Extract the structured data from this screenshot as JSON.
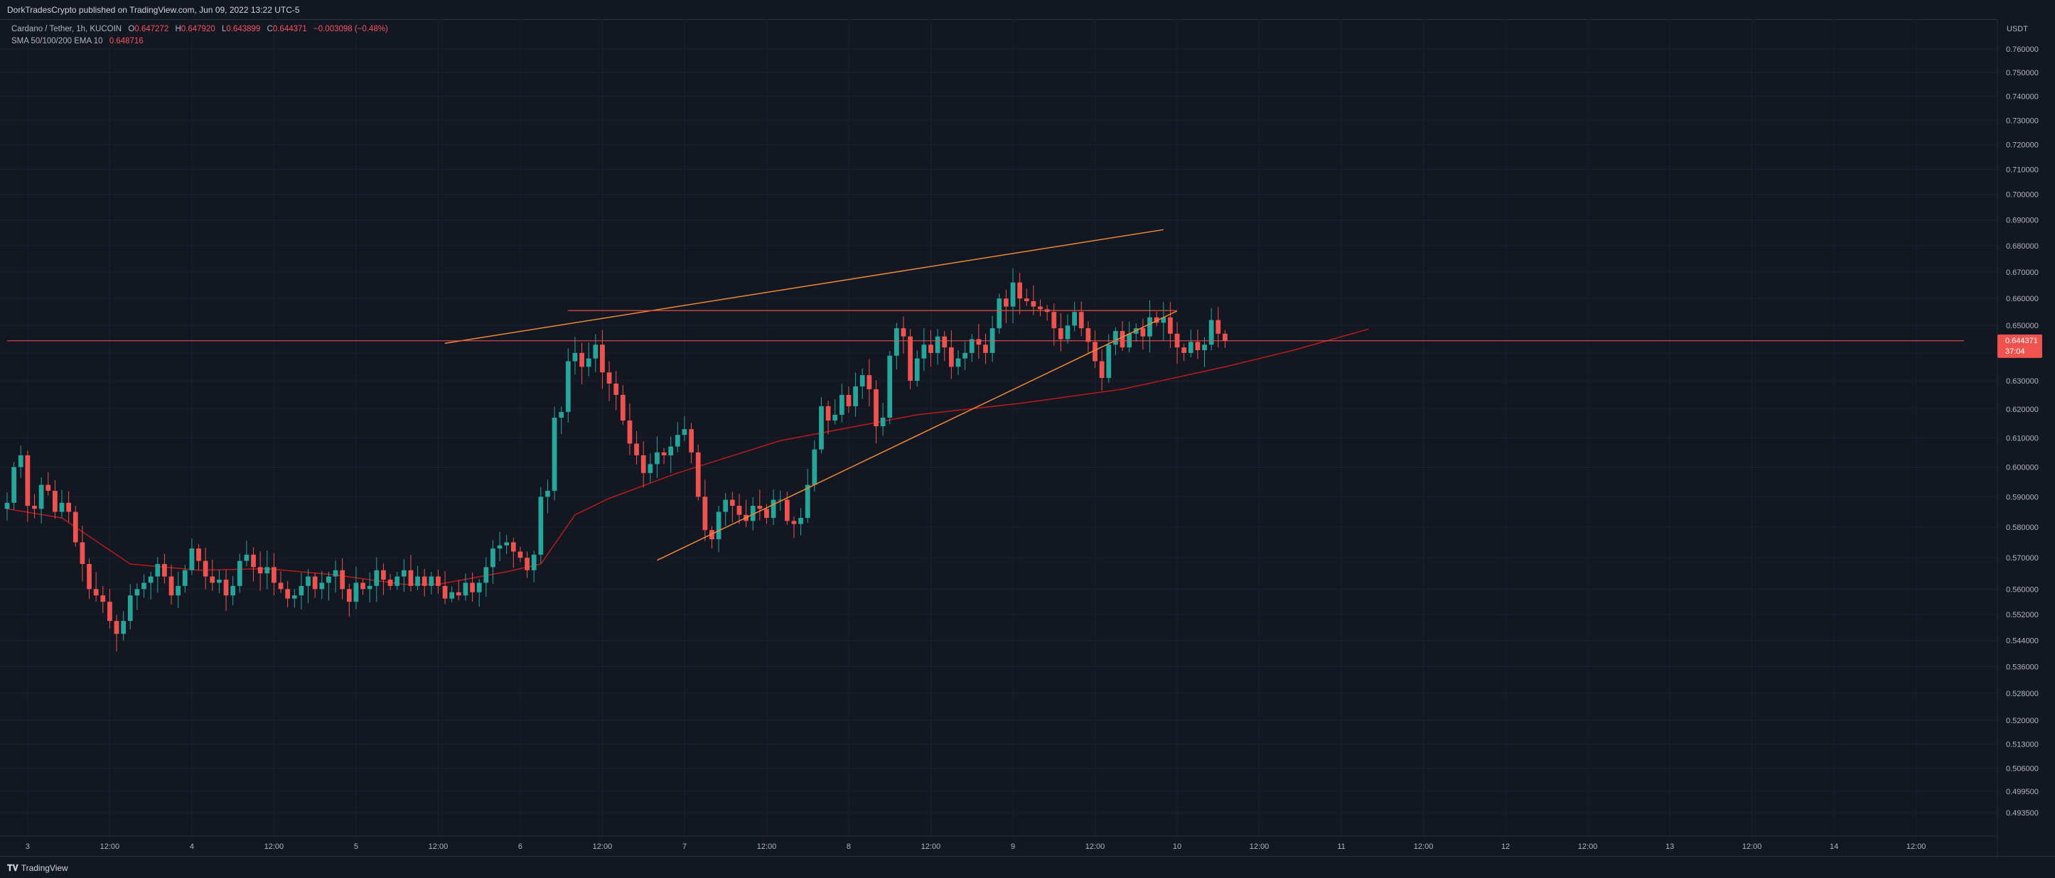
{
  "header": {
    "published": "DorkTradesCrypto published on TradingView.com, Jun 09, 2022 13:22 UTC-5"
  },
  "legend": {
    "symbol": "Cardano / Tether, 1h, KUCOIN",
    "open_label": "O",
    "open": "0.647272",
    "high_label": "H",
    "high": "0.647920",
    "low_label": "L",
    "low": "0.643899",
    "close_label": "C",
    "close": "0.644371",
    "change": "−0.003098 (−0.48%)",
    "indicator": "SMA 50/100/200 EMA 10",
    "indicator_value": "0.648716"
  },
  "price_axis": {
    "currency": "USDT",
    "last_price": "0.644371",
    "countdown": "37:04"
  },
  "footer": {
    "brand": "TradingView"
  },
  "colors": {
    "background": "#131722",
    "grid": "#1c2030",
    "up": "#26a69a",
    "down": "#ef5350",
    "ema": "#b71c1c",
    "trendline": "#ef8a34",
    "resistance": "#e0513f",
    "price_line": "#ef5350"
  },
  "chart_data": {
    "type": "candlestick",
    "title": "Cardano / Tether, 1h, KUCOIN",
    "scale": "log",
    "y_ticks": [
      "0.760000",
      "0.750000",
      "0.740000",
      "0.730000",
      "0.720000",
      "0.710000",
      "0.700000",
      "0.690000",
      "0.680000",
      "0.670000",
      "0.660000",
      "0.650000",
      "0.640000",
      "0.630000",
      "0.620000",
      "0.610000",
      "0.600000",
      "0.590000",
      "0.580000",
      "0.570000",
      "0.560000",
      "0.552000",
      "0.544000",
      "0.536000",
      "0.528000",
      "0.520000",
      "0.513000",
      "0.506000",
      "0.499500",
      "0.493500"
    ],
    "y_values": [
      0.76,
      0.75,
      0.74,
      0.73,
      0.72,
      0.71,
      0.7,
      0.69,
      0.68,
      0.67,
      0.66,
      0.65,
      0.64,
      0.63,
      0.62,
      0.61,
      0.6,
      0.59,
      0.58,
      0.57,
      0.56,
      0.552,
      0.544,
      0.536,
      0.528,
      0.52,
      0.513,
      0.506,
      0.4995,
      0.4935
    ],
    "x_ticks": [
      "3",
      "12:00",
      "4",
      "12:00",
      "5",
      "12:00",
      "6",
      "12:00",
      "7",
      "12:00",
      "8",
      "12:00",
      "9",
      "12:00",
      "10",
      "12:00",
      "11",
      "12:00",
      "12",
      "12:00",
      "13",
      "12:00",
      "14",
      "12:00"
    ],
    "x_tick_hours": [
      0,
      12,
      24,
      36,
      48,
      60,
      72,
      84,
      96,
      108,
      120,
      132,
      144,
      156,
      168,
      180,
      192,
      204,
      216,
      228,
      240,
      252,
      264,
      276
    ],
    "x_range_hours": [
      -3,
      283
    ],
    "candle_start_hour": -3,
    "candle_interval_hours": 1,
    "opens": [
      0.586,
      0.588,
      0.6,
      0.604,
      0.587,
      0.586,
      0.594,
      0.592,
      0.585,
      0.588,
      0.585,
      0.575,
      0.568,
      0.56,
      0.558,
      0.556,
      0.55,
      0.546,
      0.55,
      0.558,
      0.56,
      0.562,
      0.564,
      0.568,
      0.564,
      0.558,
      0.561,
      0.566,
      0.573,
      0.569,
      0.564,
      0.562,
      0.563,
      0.558,
      0.561,
      0.569,
      0.571,
      0.567,
      0.565,
      0.567,
      0.562,
      0.56,
      0.557,
      0.558,
      0.561,
      0.564,
      0.56,
      0.562,
      0.564,
      0.566,
      0.56,
      0.556,
      0.562,
      0.56,
      0.561,
      0.566,
      0.563,
      0.561,
      0.564,
      0.566,
      0.561,
      0.564,
      0.561,
      0.564,
      0.561,
      0.557,
      0.559,
      0.558,
      0.562,
      0.559,
      0.562,
      0.567,
      0.573,
      0.574,
      0.575,
      0.572,
      0.57,
      0.566,
      0.571,
      0.59,
      0.592,
      0.617,
      0.619,
      0.637,
      0.64,
      0.635,
      0.638,
      0.643,
      0.633,
      0.629,
      0.625,
      0.616,
      0.608,
      0.604,
      0.598,
      0.601,
      0.605,
      0.604,
      0.607,
      0.611,
      0.613,
      0.605,
      0.59,
      0.579,
      0.576,
      0.585,
      0.589,
      0.587,
      0.584,
      0.582,
      0.587,
      0.586,
      0.583,
      0.589,
      0.589,
      0.582,
      0.581,
      0.583,
      0.594,
      0.606,
      0.621,
      0.616,
      0.618,
      0.625,
      0.621,
      0.628,
      0.632,
      0.627,
      0.614,
      0.617,
      0.639,
      0.649,
      0.646,
      0.63,
      0.638,
      0.643,
      0.64,
      0.646,
      0.642,
      0.635,
      0.638,
      0.64,
      0.645,
      0.643,
      0.64,
      0.649,
      0.66,
      0.657,
      0.666,
      0.66,
      0.659,
      0.657,
      0.656,
      0.655,
      0.649,
      0.645,
      0.65,
      0.655,
      0.649,
      0.644,
      0.637,
      0.631,
      0.643,
      0.648,
      0.642,
      0.647,
      0.649,
      0.646,
      0.653,
      0.651,
      0.653,
      0.647,
      0.642,
      0.64,
      0.644,
      0.641,
      0.643,
      0.652,
      0.647
    ],
    "closes": [
      0.588,
      0.6,
      0.604,
      0.587,
      0.586,
      0.594,
      0.592,
      0.585,
      0.588,
      0.585,
      0.575,
      0.568,
      0.56,
      0.558,
      0.556,
      0.55,
      0.546,
      0.55,
      0.558,
      0.56,
      0.562,
      0.564,
      0.568,
      0.564,
      0.558,
      0.561,
      0.566,
      0.573,
      0.569,
      0.564,
      0.562,
      0.563,
      0.558,
      0.561,
      0.569,
      0.571,
      0.567,
      0.565,
      0.567,
      0.562,
      0.56,
      0.557,
      0.558,
      0.561,
      0.564,
      0.56,
      0.562,
      0.564,
      0.566,
      0.56,
      0.556,
      0.562,
      0.56,
      0.561,
      0.566,
      0.563,
      0.561,
      0.564,
      0.566,
      0.561,
      0.564,
      0.561,
      0.564,
      0.561,
      0.557,
      0.559,
      0.558,
      0.562,
      0.559,
      0.562,
      0.567,
      0.573,
      0.574,
      0.575,
      0.572,
      0.57,
      0.566,
      0.571,
      0.59,
      0.592,
      0.617,
      0.619,
      0.637,
      0.64,
      0.635,
      0.638,
      0.643,
      0.633,
      0.629,
      0.625,
      0.616,
      0.608,
      0.604,
      0.598,
      0.601,
      0.605,
      0.604,
      0.607,
      0.611,
      0.613,
      0.605,
      0.59,
      0.579,
      0.576,
      0.585,
      0.589,
      0.587,
      0.584,
      0.582,
      0.587,
      0.586,
      0.583,
      0.589,
      0.589,
      0.582,
      0.581,
      0.583,
      0.594,
      0.606,
      0.621,
      0.616,
      0.618,
      0.625,
      0.621,
      0.628,
      0.632,
      0.627,
      0.614,
      0.617,
      0.639,
      0.649,
      0.646,
      0.63,
      0.638,
      0.643,
      0.64,
      0.646,
      0.642,
      0.635,
      0.638,
      0.64,
      0.645,
      0.643,
      0.64,
      0.649,
      0.66,
      0.657,
      0.666,
      0.66,
      0.659,
      0.657,
      0.656,
      0.655,
      0.649,
      0.645,
      0.65,
      0.655,
      0.649,
      0.644,
      0.637,
      0.631,
      0.643,
      0.648,
      0.642,
      0.647,
      0.649,
      0.646,
      0.653,
      0.651,
      0.653,
      0.647,
      0.642,
      0.64,
      0.644,
      0.641,
      0.643,
      0.652,
      0.647,
      0.6444
    ],
    "ema_hours": [
      -3,
      5,
      15,
      25,
      35,
      45,
      55,
      60,
      65,
      70,
      75,
      80,
      85,
      95,
      110,
      130,
      145,
      160,
      175,
      185,
      196
    ],
    "ema_values": [
      0.586,
      0.583,
      0.568,
      0.566,
      0.5665,
      0.5645,
      0.5615,
      0.5615,
      0.5635,
      0.5655,
      0.568,
      0.584,
      0.5895,
      0.598,
      0.609,
      0.618,
      0.622,
      0.627,
      0.635,
      0.641,
      0.6487
    ],
    "lines": [
      {
        "name": "upper-trendline",
        "from": [
          61,
          0.6435
        ],
        "to": [
          166,
          0.6862
        ]
      },
      {
        "name": "lower-trendline",
        "from": [
          92,
          0.5692
        ],
        "to": [
          168,
          0.6554
        ]
      },
      {
        "name": "resistance-level",
        "from": [
          79,
          0.6555
        ],
        "to": [
          168,
          0.6555
        ]
      },
      {
        "name": "last-price-line",
        "from": [
          -3,
          0.6444
        ],
        "to": [
          283,
          0.6444
        ]
      }
    ]
  }
}
